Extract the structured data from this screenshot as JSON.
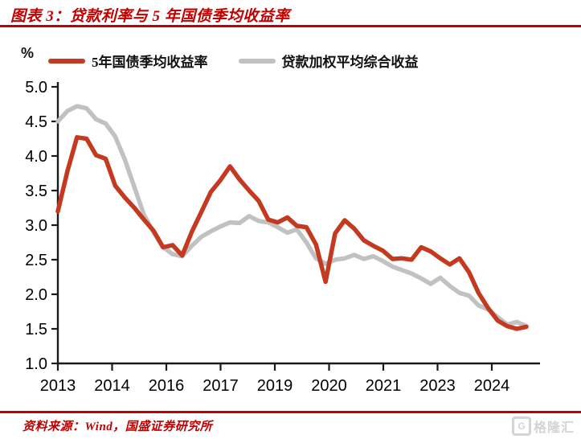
{
  "header": {
    "title": "图表 3：贷款利率与 5 年国债季均收益率"
  },
  "legend": {
    "unit": "%",
    "items": [
      {
        "label": "5年国债季均收益率",
        "color": "#c43a20"
      },
      {
        "label": "贷款加权平均综合收益",
        "color": "#c1c1c1"
      }
    ]
  },
  "footer": {
    "source": "资料来源：Wind，国盛证券研究所",
    "watermark_letter": "G",
    "watermark": "格隆汇"
  },
  "colors": {
    "accent_red": "#c00000",
    "series_red": "#c43a20",
    "series_gray": "#c1c1c1",
    "axis": "#1a1a1a"
  },
  "chart_data": {
    "type": "line",
    "title": "贷款利率与 5 年国债季均收益率",
    "unit": "%",
    "xlabel": "",
    "ylabel": "%",
    "ylim": [
      1.0,
      5.0
    ],
    "ytick_step": 0.5,
    "grid": false,
    "legend_position": "top",
    "y_tick_labels": [
      "5.0",
      "4.5",
      "4.0",
      "3.5",
      "3.0",
      "2.5",
      "2.0",
      "1.5",
      "1.0"
    ],
    "x_tick_labels": [
      "2013",
      "2014",
      "2016",
      "2017",
      "2019",
      "2020",
      "2021",
      "2023",
      "2024"
    ],
    "x_note": "quarterly points, 2013 through 2024",
    "series": [
      {
        "name": "5年国债季均收益率",
        "color": "#c43a20",
        "values": [
          3.2,
          3.78,
          4.27,
          4.25,
          4.01,
          3.96,
          3.57,
          3.4,
          3.25,
          3.08,
          2.92,
          2.68,
          2.71,
          2.56,
          2.9,
          3.19,
          3.48,
          3.65,
          3.85,
          3.66,
          3.5,
          3.35,
          3.08,
          3.04,
          3.11,
          2.99,
          2.97,
          2.72,
          2.18,
          2.88,
          3.07,
          2.95,
          2.78,
          2.7,
          2.63,
          2.51,
          2.52,
          2.5,
          2.68,
          2.62,
          2.52,
          2.43,
          2.52,
          2.32,
          2.02,
          1.8,
          1.62,
          1.54,
          1.5,
          1.53
        ]
      },
      {
        "name": "贷款加权平均综合收益",
        "color": "#c1c1c1",
        "values": [
          4.5,
          4.65,
          4.72,
          4.69,
          4.53,
          4.47,
          4.28,
          3.95,
          3.55,
          3.15,
          2.9,
          2.68,
          2.58,
          2.55,
          2.7,
          2.83,
          2.91,
          2.98,
          3.04,
          3.03,
          3.13,
          3.06,
          3.04,
          2.97,
          2.89,
          2.94,
          2.75,
          2.52,
          2.44,
          2.5,
          2.52,
          2.57,
          2.51,
          2.55,
          2.48,
          2.4,
          2.35,
          2.3,
          2.23,
          2.15,
          2.24,
          2.12,
          2.02,
          1.98,
          1.84,
          1.78,
          1.67,
          1.56,
          1.6,
          1.54
        ]
      }
    ]
  }
}
